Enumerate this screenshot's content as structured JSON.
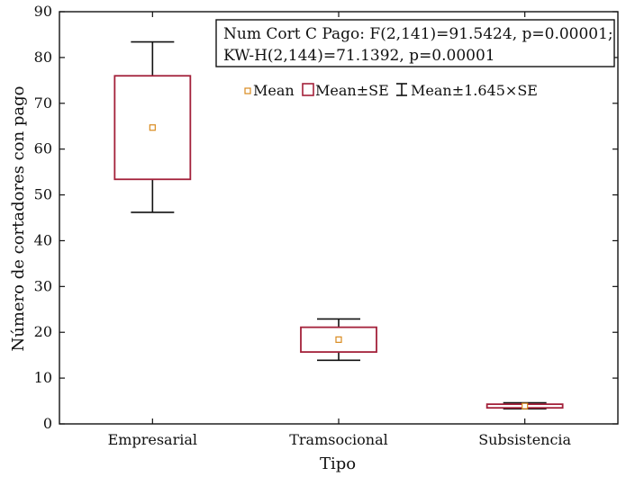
{
  "chart_data": {
    "type": "boxplot",
    "xlabel": "Tipo",
    "ylabel": "Número de cortadores con pago",
    "ylim": [
      0,
      90
    ],
    "yticks": [
      0,
      10,
      20,
      30,
      40,
      50,
      60,
      70,
      80,
      90
    ],
    "categories": [
      "Empresarial",
      "Tramsocional",
      "Subsistencia"
    ],
    "series": [
      {
        "category": "Empresarial",
        "mean": 64.7,
        "mean_minus_se": 53.4,
        "mean_plus_se": 76.0,
        "whisker_low": 46.2,
        "whisker_high": 83.4
      },
      {
        "category": "Tramsocional",
        "mean": 18.4,
        "mean_minus_se": 15.7,
        "mean_plus_se": 21.1,
        "whisker_low": 13.9,
        "whisker_high": 22.9
      },
      {
        "category": "Subsistencia",
        "mean": 3.9,
        "mean_minus_se": 3.5,
        "mean_plus_se": 4.3,
        "whisker_low": 3.3,
        "whisker_high": 4.6
      }
    ],
    "stats_box": {
      "line1": "Num Cort C Pago: F(2,141)=91.5424, p=0.00001;",
      "line2": "KW-H(2,144)=71.1392, p=0.00001"
    },
    "legend": {
      "position": "top-right",
      "items": [
        {
          "label": "Mean",
          "symbol": "mean"
        },
        {
          "label": "Mean±SE",
          "symbol": "box"
        },
        {
          "label": "Mean±1.645×SE",
          "symbol": "whisker"
        }
      ]
    },
    "colors": {
      "box": "#a3213a",
      "mean": "#d98a1e",
      "whisker": "#111111"
    },
    "grid": false
  }
}
